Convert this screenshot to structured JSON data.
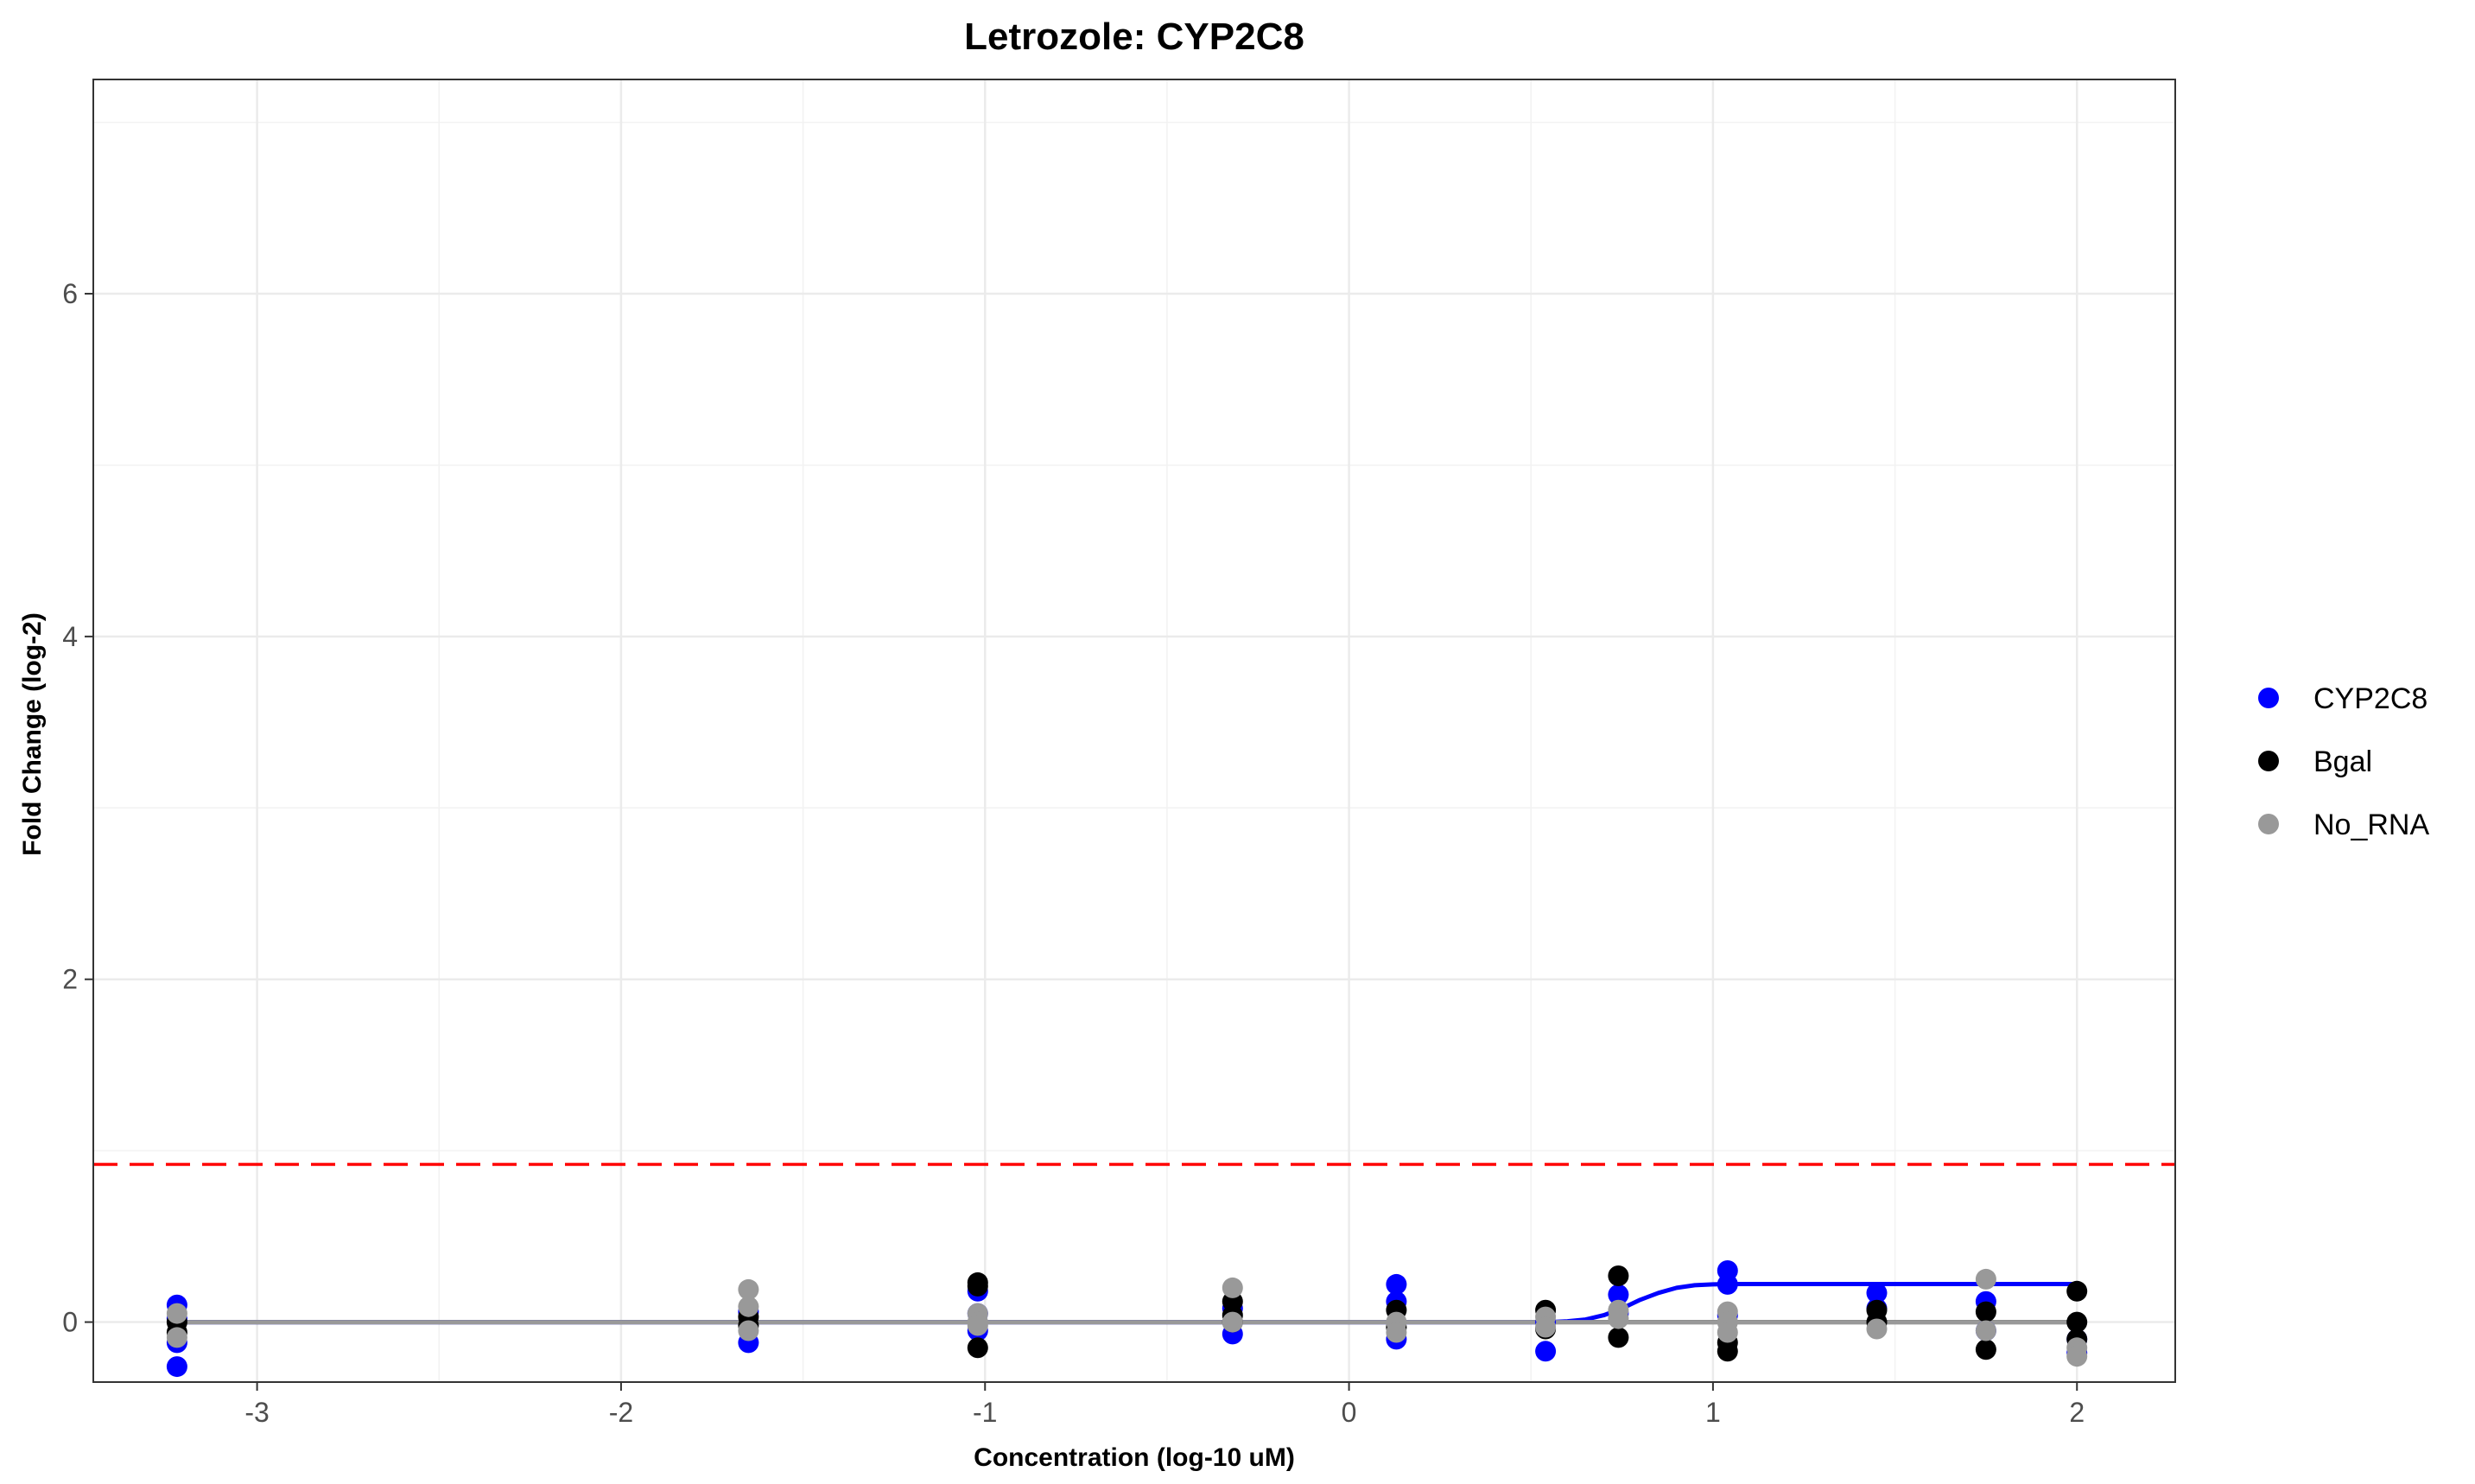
{
  "chart_data": {
    "type": "scatter",
    "title": "Letrozole: CYP2C8",
    "xlabel": "Concentration (log-10 uM)",
    "ylabel": "Fold Change (log-2)",
    "xlim": [
      -3.45,
      2.27
    ],
    "ylim": [
      -0.35,
      7.25
    ],
    "x_ticks": [
      -3,
      -2,
      -1,
      0,
      1,
      2
    ],
    "y_ticks": [
      0,
      2,
      4,
      6
    ],
    "grid": true,
    "legend_position": "right",
    "threshold": {
      "y": 0.92,
      "color": "#ff0000",
      "style": "dashed"
    },
    "series": [
      {
        "name": "CYP2C8",
        "color": "#0000ff",
        "points": [
          [
            -3.22,
            0.1
          ],
          [
            -3.22,
            0.02
          ],
          [
            -3.22,
            -0.12
          ],
          [
            -3.22,
            -0.26
          ],
          [
            -1.65,
            -0.12
          ],
          [
            -1.65,
            0.06
          ],
          [
            -1.02,
            0.18
          ],
          [
            -1.02,
            0.05
          ],
          [
            -1.02,
            -0.05
          ],
          [
            -0.32,
            -0.07
          ],
          [
            -0.32,
            0.08
          ],
          [
            0.13,
            0.22
          ],
          [
            0.13,
            0.12
          ],
          [
            0.13,
            -0.1
          ],
          [
            0.54,
            -0.17
          ],
          [
            0.54,
            0.0
          ],
          [
            0.74,
            0.16
          ],
          [
            0.74,
            0.05
          ],
          [
            1.04,
            0.3
          ],
          [
            1.04,
            0.22
          ],
          [
            1.04,
            0.04
          ],
          [
            1.45,
            0.17
          ],
          [
            1.45,
            0.08
          ],
          [
            1.75,
            0.12
          ],
          [
            1.75,
            -0.05
          ],
          [
            2.0,
            -0.1
          ],
          [
            2.0,
            -0.18
          ]
        ],
        "fit": [
          [
            -3.22,
            0.0
          ],
          [
            0.55,
            0.0
          ],
          [
            0.6,
            0.005
          ],
          [
            0.65,
            0.015
          ],
          [
            0.7,
            0.04
          ],
          [
            0.75,
            0.08
          ],
          [
            0.8,
            0.13
          ],
          [
            0.85,
            0.17
          ],
          [
            0.9,
            0.2
          ],
          [
            0.95,
            0.215
          ],
          [
            1.0,
            0.22
          ],
          [
            1.05,
            0.222
          ],
          [
            2.0,
            0.222
          ]
        ]
      },
      {
        "name": "Bgal",
        "color": "#000000",
        "points": [
          [
            -3.22,
            0.0
          ],
          [
            -3.22,
            -0.06
          ],
          [
            -1.65,
            0.03
          ],
          [
            -1.65,
            -0.02
          ],
          [
            -1.02,
            0.23
          ],
          [
            -1.02,
            0.21
          ],
          [
            -1.02,
            -0.15
          ],
          [
            -0.32,
            0.12
          ],
          [
            -0.32,
            0.04
          ],
          [
            -0.32,
            0.0
          ],
          [
            0.13,
            0.07
          ],
          [
            0.13,
            -0.03
          ],
          [
            0.54,
            0.07
          ],
          [
            0.54,
            -0.04
          ],
          [
            0.74,
            0.27
          ],
          [
            0.74,
            -0.09
          ],
          [
            1.04,
            -0.12
          ],
          [
            1.04,
            -0.17
          ],
          [
            1.45,
            0.07
          ],
          [
            1.45,
            0.0
          ],
          [
            1.75,
            0.06
          ],
          [
            1.75,
            -0.16
          ],
          [
            2.0,
            0.18
          ],
          [
            2.0,
            0.0
          ],
          [
            2.0,
            -0.1
          ]
        ],
        "fit": [
          [
            -3.22,
            0.0
          ],
          [
            2.0,
            0.0
          ]
        ]
      },
      {
        "name": "No_RNA",
        "color": "#999999",
        "points": [
          [
            -3.22,
            0.05
          ],
          [
            -3.22,
            -0.09
          ],
          [
            -1.65,
            0.19
          ],
          [
            -1.65,
            0.09
          ],
          [
            -1.65,
            -0.05
          ],
          [
            -1.02,
            0.05
          ],
          [
            -1.02,
            0.0
          ],
          [
            -1.02,
            -0.02
          ],
          [
            -0.32,
            0.2
          ],
          [
            -0.32,
            0.0
          ],
          [
            0.13,
            0.0
          ],
          [
            0.13,
            -0.06
          ],
          [
            0.54,
            0.03
          ],
          [
            0.54,
            -0.03
          ],
          [
            0.74,
            0.07
          ],
          [
            0.74,
            0.02
          ],
          [
            1.04,
            0.06
          ],
          [
            1.04,
            0.0
          ],
          [
            1.04,
            -0.06
          ],
          [
            1.45,
            -0.04
          ],
          [
            1.75,
            0.25
          ],
          [
            1.75,
            -0.05
          ],
          [
            2.0,
            -0.15
          ],
          [
            2.0,
            -0.2
          ]
        ],
        "fit": [
          [
            -3.22,
            0.0
          ],
          [
            2.0,
            0.0
          ]
        ]
      }
    ]
  }
}
